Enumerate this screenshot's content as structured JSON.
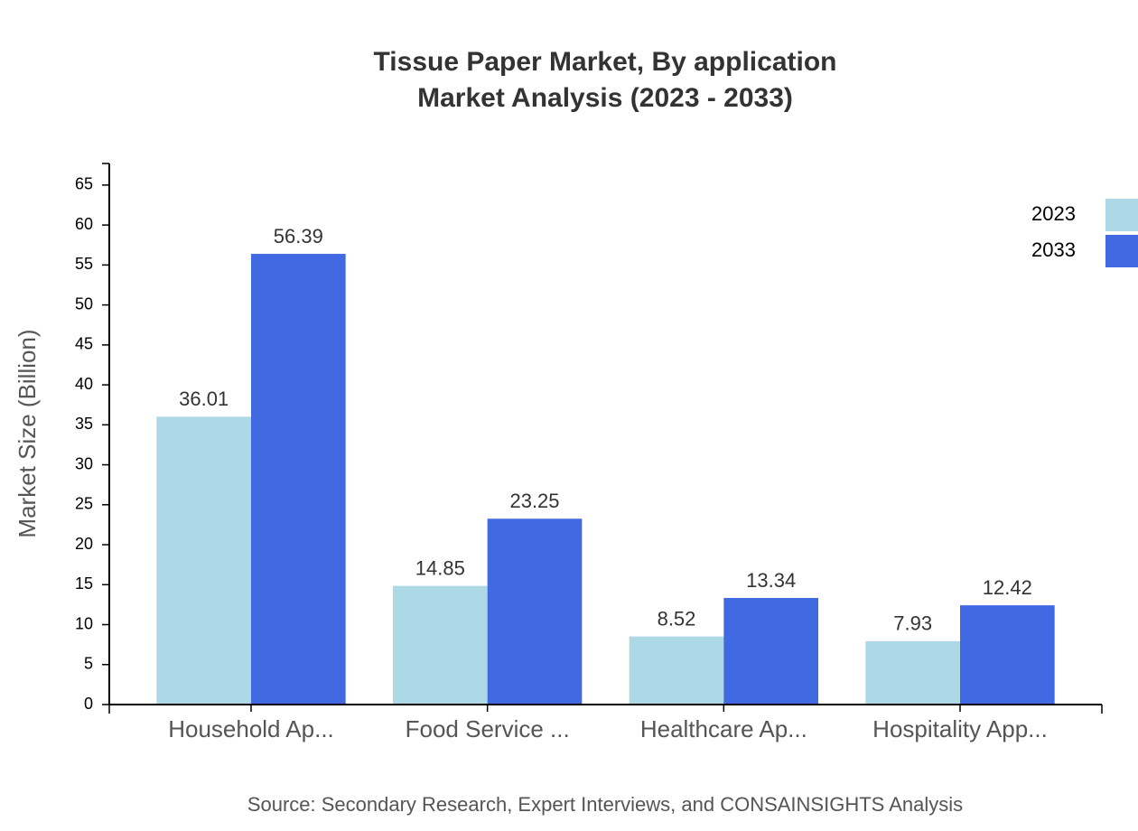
{
  "chart_data": {
    "type": "bar",
    "title": "Tissue Paper Market, By application",
    "subtitle": "Market Analysis (2023 - 2033)",
    "y_label": "Market Size (Billion)",
    "source": "Source: Secondary Research, Expert Interviews, and CONSAINSIGHTS Analysis",
    "categories": [
      "Household Ap...",
      "Food Service ...",
      "Healthcare Ap...",
      "Hospitality App..."
    ],
    "series": [
      {
        "name": "2023",
        "color": "#add8e6",
        "values": [
          36.01,
          14.85,
          8.52,
          7.93
        ]
      },
      {
        "name": "2033",
        "color": "#4169e1",
        "values": [
          56.39,
          23.25,
          13.34,
          12.42
        ]
      }
    ],
    "ylim": [
      0,
      67.7
    ],
    "yticks": [
      0,
      5,
      10,
      15,
      20,
      25,
      30,
      35,
      40,
      45,
      50,
      55,
      60,
      65
    ],
    "legend": "top-right"
  }
}
